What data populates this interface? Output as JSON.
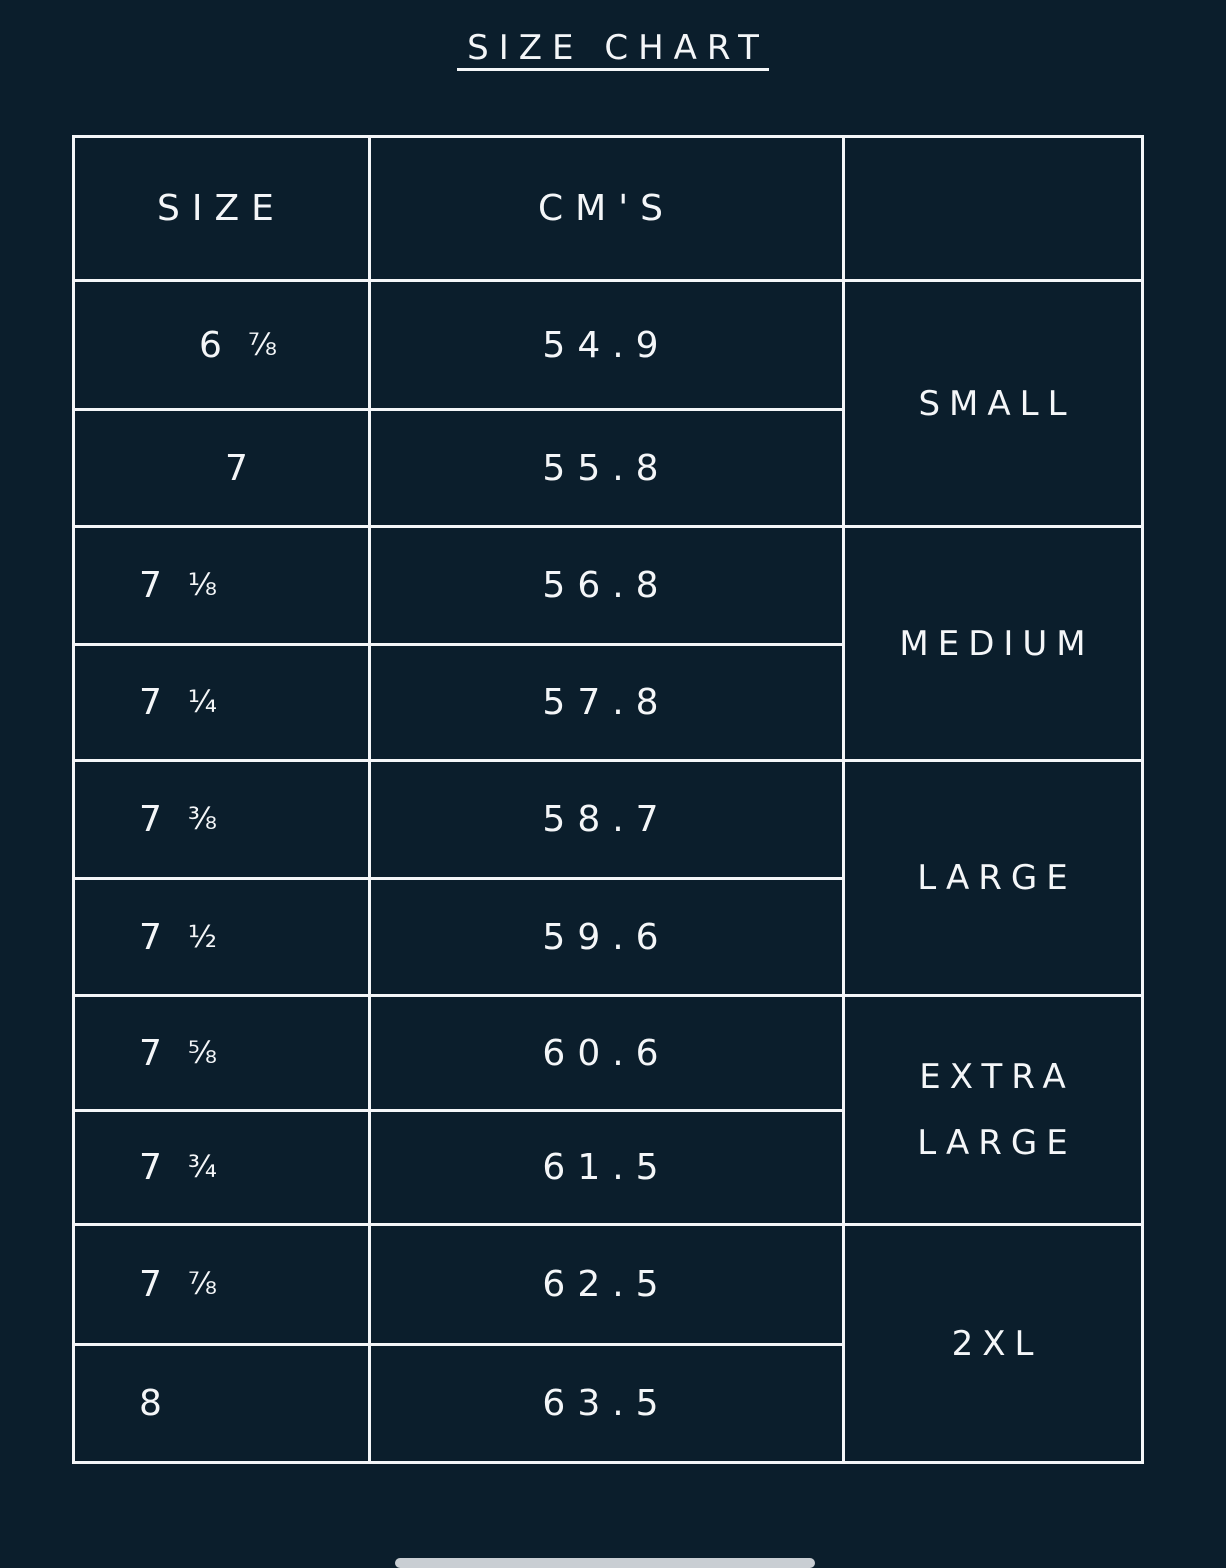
{
  "title": "SIZE CHART",
  "headers": {
    "size": "SIZE",
    "cms": "CM'S",
    "group": ""
  },
  "rows": [
    {
      "whole": "6",
      "fraction": "⅞",
      "cm": "54.9"
    },
    {
      "whole": "7",
      "fraction": "",
      "cm": "55.8"
    },
    {
      "whole": "7",
      "fraction": "⅛",
      "cm": "56.8"
    },
    {
      "whole": "7",
      "fraction": "¼",
      "cm": "57.8"
    },
    {
      "whole": "7",
      "fraction": "⅜",
      "cm": "58.7"
    },
    {
      "whole": "7",
      "fraction": "½",
      "cm": "59.6"
    },
    {
      "whole": "7",
      "fraction": "⅝",
      "cm": "60.6"
    },
    {
      "whole": "7",
      "fraction": "¾",
      "cm": "61.5"
    },
    {
      "whole": "7",
      "fraction": "⅞",
      "cm": "62.5"
    },
    {
      "whole": "8",
      "fraction": "",
      "cm": "63.5"
    }
  ],
  "groups": [
    {
      "lines": [
        "SMALL"
      ]
    },
    {
      "lines": [
        "MEDIUM"
      ]
    },
    {
      "lines": [
        "LARGE"
      ]
    },
    {
      "lines": [
        "EXTRA",
        "LARGE"
      ]
    },
    {
      "lines": [
        "2XL"
      ]
    }
  ],
  "colors": {
    "background": "#0b1e2c",
    "foreground": "#f4f6f8"
  }
}
